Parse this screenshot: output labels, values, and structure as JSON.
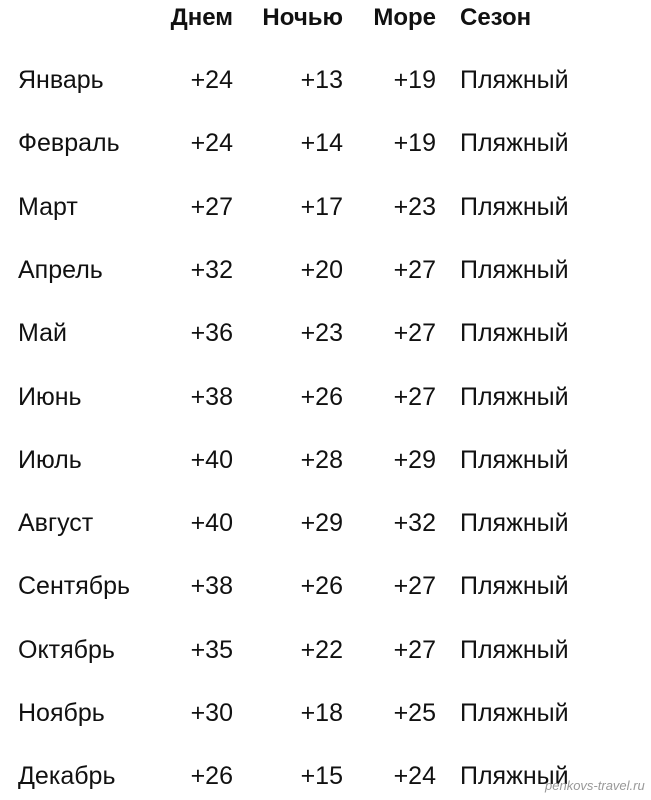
{
  "headers": {
    "month": "",
    "day": "Днем",
    "night": "Ночью",
    "sea": "Море",
    "season": "Сезон"
  },
  "rows": [
    {
      "month": "Январь",
      "day": "+24",
      "night": "+13",
      "sea": "+19",
      "season": "Пляжный"
    },
    {
      "month": "Февраль",
      "day": "+24",
      "night": "+14",
      "sea": "+19",
      "season": "Пляжный"
    },
    {
      "month": "Март",
      "day": "+27",
      "night": "+17",
      "sea": "+23",
      "season": "Пляжный"
    },
    {
      "month": "Апрель",
      "day": "+32",
      "night": "+20",
      "sea": "+27",
      "season": "Пляжный"
    },
    {
      "month": "Май",
      "day": "+36",
      "night": "+23",
      "sea": "+27",
      "season": "Пляжный"
    },
    {
      "month": "Июнь",
      "day": "+38",
      "night": "+26",
      "sea": "+27",
      "season": "Пляжный"
    },
    {
      "month": "Июль",
      "day": "+40",
      "night": "+28",
      "sea": "+29",
      "season": "Пляжный"
    },
    {
      "month": "Август",
      "day": "+40",
      "night": "+29",
      "sea": "+32",
      "season": "Пляжный"
    },
    {
      "month": "Сентябрь",
      "day": "+38",
      "night": "+26",
      "sea": "+27",
      "season": "Пляжный"
    },
    {
      "month": "Октябрь",
      "day": "+35",
      "night": "+22",
      "sea": "+27",
      "season": "Пляжный"
    },
    {
      "month": "Ноябрь",
      "day": "+30",
      "night": "+18",
      "sea": "+25",
      "season": "Пляжный"
    },
    {
      "month": "Декабрь",
      "day": "+26",
      "night": "+15",
      "sea": "+24",
      "season": "Пляжный"
    }
  ],
  "watermark": "penkovs-travel.ru"
}
